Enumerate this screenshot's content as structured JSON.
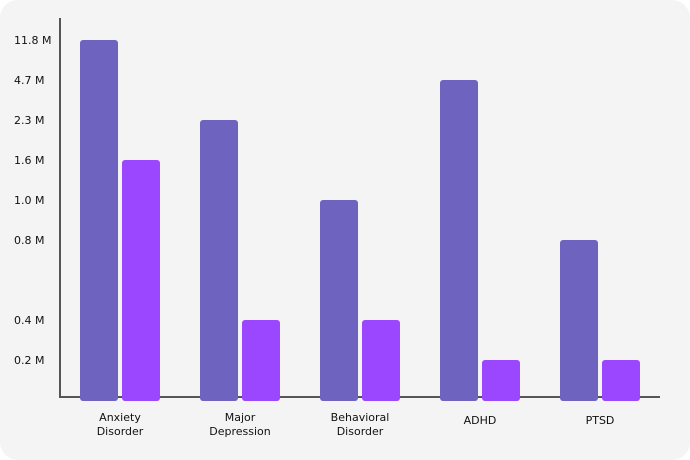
{
  "chart_data": {
    "type": "bar",
    "title": "",
    "xlabel": "",
    "ylabel": "",
    "categories": [
      [
        "Anxiety",
        "Disorder"
      ],
      [
        "Major",
        "Depression"
      ],
      [
        "Behavioral",
        "Disorder"
      ],
      [
        "ADHD"
      ],
      [
        "PTSD"
      ]
    ],
    "y_ticks": [
      "0.2 M",
      "0.4 M",
      "0.8 M",
      "1.0 M",
      "1.6 M",
      "2.3 M",
      "4.7 M",
      "11.8 M"
    ],
    "series": [
      {
        "values": [
          11.8,
          2.3,
          1.0,
          4.7,
          0.8
        ],
        "color": "#6f63c0"
      },
      {
        "values": [
          1.6,
          0.4,
          0.4,
          0.2,
          0.2
        ],
        "color": "#9a47ff"
      }
    ],
    "grid": false,
    "legend": "none"
  }
}
